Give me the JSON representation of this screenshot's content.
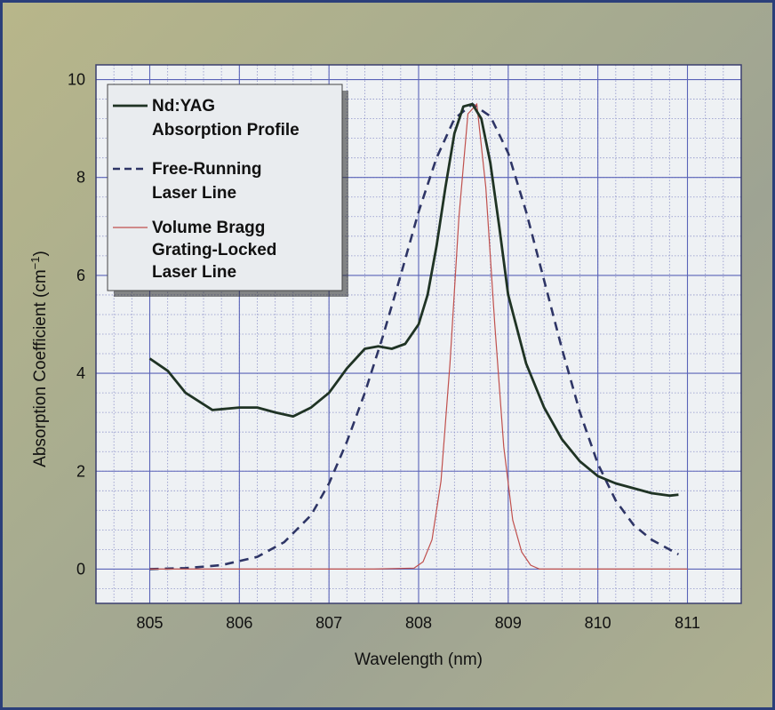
{
  "chart_data": {
    "type": "line",
    "xlabel": "Wavelength (nm)",
    "ylabel_main": "Absorption Coefficient (cm",
    "ylabel_sup": "−1",
    "ylabel_close": ")",
    "xlim": [
      804.4,
      811.6
    ],
    "ylim": [
      -0.7,
      10.3
    ],
    "xticks": [
      805,
      806,
      807,
      808,
      809,
      810,
      811
    ],
    "yticks": [
      0,
      2,
      4,
      6,
      8,
      10
    ],
    "minor_grid_step_x": 0.2,
    "minor_grid_step_y": 0.4,
    "grid": true,
    "legend_position": "top-left",
    "colors": {
      "plot_bg": "#eef1f4",
      "major_grid": "#5a63b8",
      "minor_grid": "#8e93c9"
    },
    "series": [
      {
        "name": "Nd:YAG\nAbsorption Profile",
        "style": "solid",
        "color": "#1f3324",
        "x": [
          805.0,
          805.2,
          805.4,
          805.7,
          806.0,
          806.2,
          806.4,
          806.6,
          806.8,
          807.0,
          807.2,
          807.4,
          807.55,
          807.7,
          807.85,
          808.0,
          808.1,
          808.2,
          808.3,
          808.4,
          808.5,
          808.6,
          808.7,
          808.8,
          808.9,
          809.0,
          809.2,
          809.4,
          809.6,
          809.8,
          810.0,
          810.2,
          810.4,
          810.6,
          810.8,
          810.9
        ],
        "y": [
          4.3,
          4.05,
          3.6,
          3.25,
          3.3,
          3.3,
          3.2,
          3.12,
          3.3,
          3.6,
          4.1,
          4.5,
          4.55,
          4.5,
          4.6,
          5.0,
          5.6,
          6.6,
          7.8,
          8.9,
          9.45,
          9.5,
          9.2,
          8.3,
          7.0,
          5.6,
          4.2,
          3.3,
          2.65,
          2.2,
          1.9,
          1.75,
          1.65,
          1.55,
          1.5,
          1.52
        ]
      },
      {
        "name": "Free-Running\nLaser Line",
        "style": "dashed",
        "color": "#2e3566",
        "x": [
          805.0,
          805.4,
          805.8,
          806.2,
          806.5,
          806.8,
          807.0,
          807.2,
          807.4,
          807.6,
          807.8,
          808.0,
          808.2,
          808.4,
          808.6,
          808.8,
          809.0,
          809.2,
          809.4,
          809.6,
          809.8,
          810.0,
          810.2,
          810.4,
          810.6,
          810.8,
          810.9
        ],
        "y": [
          0.0,
          0.02,
          0.08,
          0.25,
          0.55,
          1.1,
          1.75,
          2.6,
          3.6,
          4.75,
          6.0,
          7.3,
          8.4,
          9.2,
          9.5,
          9.25,
          8.5,
          7.3,
          5.9,
          4.5,
          3.2,
          2.15,
          1.4,
          0.9,
          0.6,
          0.4,
          0.3
        ]
      },
      {
        "name": "Volume Bragg\nGrating-Locked\nLaser Line",
        "style": "solid",
        "color": "#c0504d",
        "x": [
          805.0,
          807.5,
          807.95,
          808.05,
          808.15,
          808.25,
          808.35,
          808.45,
          808.55,
          808.65,
          808.75,
          808.85,
          808.95,
          809.05,
          809.15,
          809.25,
          809.35,
          811.0
        ],
        "y": [
          0.0,
          0.0,
          0.02,
          0.15,
          0.6,
          1.8,
          4.2,
          7.2,
          9.3,
          9.5,
          7.8,
          5.0,
          2.5,
          1.0,
          0.35,
          0.08,
          0.0,
          0.0
        ]
      }
    ]
  }
}
